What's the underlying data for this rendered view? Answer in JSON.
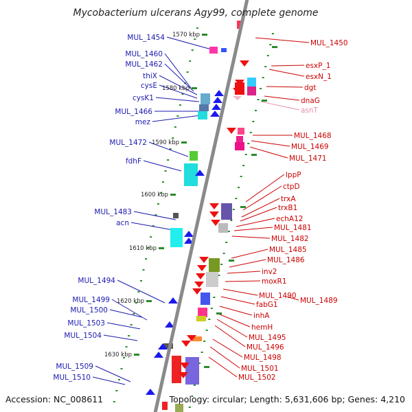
{
  "title": "Mycobacterium ulcerans Agy99, complete genome",
  "footer": {
    "accession": "Accession: NC_008611",
    "summary": "Topology: circular; Length: 5,631,606 bp; Genes: 4,210"
  },
  "colors": {
    "left_label": "#1a1ab0",
    "right_label": "#cc0000",
    "asn_label": "#e58fb4",
    "axis": "#888888",
    "tick": "#2a8a2a"
  },
  "kbp_marks": [
    "1570 kbp",
    "1580 kbp",
    "1590 kbp",
    "1600 kbp",
    "1610 kbp",
    "1620 kbp",
    "1630 kbp"
  ],
  "left_genes": [
    "MUL_1454",
    "MUL_1460",
    "MUL_1462",
    "thiX",
    "cysE",
    "cysK1",
    "MUL_1466",
    "mez",
    "MUL_1472",
    "fdhF",
    "MUL_1483",
    "acn",
    "MUL_1494",
    "MUL_1499",
    "MUL_1500",
    "MUL_1503",
    "MUL_1504",
    "MUL_1509",
    "MUL_1510"
  ],
  "right_genes": [
    "MUL_1450",
    "esxP_1",
    "esxN_1",
    "dgt",
    "dnaG",
    "asnT",
    "MUL_1468",
    "MUL_1469",
    "MUL_1471",
    "lppP",
    "ctpD",
    "trxA",
    "trxB1",
    "echA12",
    "MUL_1481",
    "MUL_1482",
    "MUL_1485",
    "MUL_1486",
    "inv2",
    "moxR1",
    "MUL_1490",
    "MUL_1489",
    "fabG1",
    "inhA",
    "hemH",
    "MUL_1495",
    "MUL_1496",
    "MUL_1498",
    "MUL_1501",
    "MUL_1502"
  ]
}
